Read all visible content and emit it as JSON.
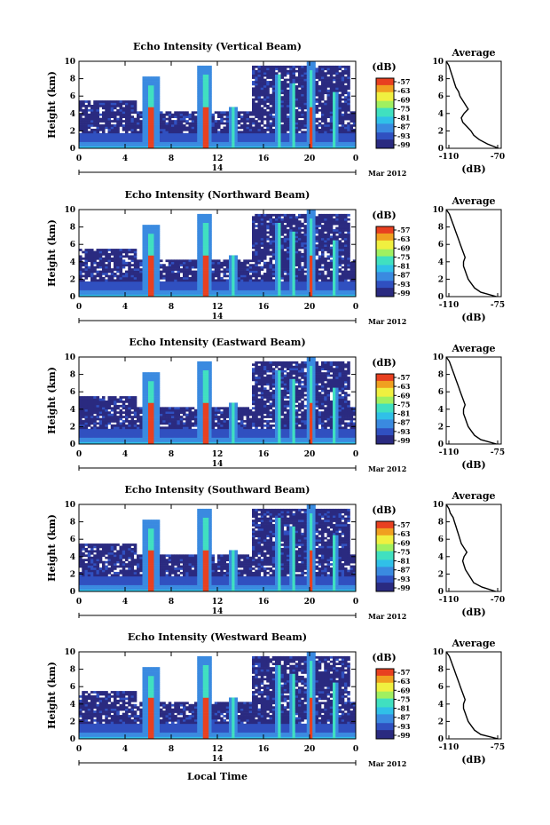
{
  "colorbar": {
    "unit": "(dB)",
    "ticks_by_panel": [
      [
        "-57",
        "-63",
        "-69",
        "-75",
        "-81",
        "-87",
        "-93",
        "-99"
      ],
      [
        "-57",
        "-63",
        "-69",
        "-75",
        "-81",
        "-87",
        "-93",
        "-99"
      ],
      [
        "-57",
        "-63",
        "-69",
        "-75",
        "-81",
        "-87",
        "-93",
        "-99"
      ],
      [
        "-57",
        "-63",
        "-69",
        "-75",
        "-81",
        "-87",
        "-93",
        "-99"
      ],
      [
        "-57",
        "-63",
        "-69",
        "-75",
        "-81",
        "-87",
        "-93",
        "-99"
      ]
    ],
    "colors": [
      "#2a2a80",
      "#3050c0",
      "#3a8ae0",
      "#30c0e8",
      "#40e0c0",
      "#a0f060",
      "#f0f040",
      "#f0a020",
      "#e84020"
    ]
  },
  "date_bar": {
    "day": "14",
    "month_year": "Mar 2012"
  },
  "x_axis_title": "Local Time",
  "chart_data": [
    {
      "type": "heatmap",
      "title": "Echo Intensity (Vertical Beam)",
      "ylabel": "Height (km)",
      "ylim": [
        0,
        10
      ],
      "yticks": [
        "0",
        "2",
        "4",
        "6",
        "8",
        "10"
      ],
      "xlim": [
        0,
        24
      ],
      "xticks": [
        "0",
        "4",
        "8",
        "12",
        "16",
        "20",
        "0"
      ],
      "colorbar_label": "(dB)",
      "color_range": [
        -99,
        -57
      ],
      "average_profile": {
        "title": "Average",
        "xlabel": "(dB)",
        "xticks": [
          "-110",
          "-70"
        ],
        "xlim": [
          -110,
          -70
        ],
        "height_km": [
          0,
          0.5,
          1,
          1.5,
          2,
          2.5,
          3,
          3.5,
          4,
          4.5,
          5,
          5.5,
          6,
          6.5,
          7,
          7.5,
          8,
          8.5,
          9,
          9.5,
          10
        ],
        "db": [
          -72,
          -80,
          -86,
          -90,
          -92,
          -95,
          -98,
          -99,
          -97,
          -94,
          -96,
          -98,
          -100,
          -101,
          -103,
          -104,
          -105,
          -106,
          -107,
          -108,
          -110
        ]
      }
    },
    {
      "type": "heatmap",
      "title": "Echo Intensity (Northward Beam)",
      "ylabel": "Height (km)",
      "ylim": [
        0,
        10
      ],
      "yticks": [
        "0",
        "2",
        "4",
        "6",
        "8",
        "10"
      ],
      "xlim": [
        0,
        24
      ],
      "xticks": [
        "0",
        "4",
        "8",
        "12",
        "16",
        "20",
        "0"
      ],
      "colorbar_label": "(dB)",
      "color_range": [
        -99,
        -57
      ],
      "average_profile": {
        "title": "Average",
        "xlabel": "(dB)",
        "xticks": [
          "-110",
          "-75"
        ],
        "xlim": [
          -110,
          -75
        ],
        "height_km": [
          0,
          0.5,
          1,
          1.5,
          2,
          2.5,
          3,
          3.5,
          4,
          4.5,
          5,
          5.5,
          6,
          6.5,
          7,
          7.5,
          8,
          8.5,
          9,
          9.5,
          10
        ],
        "db": [
          -78,
          -88,
          -92,
          -94,
          -96,
          -97,
          -98,
          -99,
          -99,
          -98,
          -99,
          -100,
          -101,
          -102,
          -103,
          -104,
          -105,
          -106,
          -107,
          -108,
          -110
        ]
      }
    },
    {
      "type": "heatmap",
      "title": "Echo Intensity (Eastward Beam)",
      "ylabel": "Height (km)",
      "ylim": [
        0,
        10
      ],
      "yticks": [
        "0",
        "2",
        "4",
        "6",
        "8",
        "10"
      ],
      "xlim": [
        0,
        24
      ],
      "xticks": [
        "0",
        "4",
        "8",
        "12",
        "16",
        "20",
        "0"
      ],
      "colorbar_label": "(dB)",
      "color_range": [
        -99,
        -57
      ],
      "average_profile": {
        "title": "Average",
        "xlabel": "(dB)",
        "xticks": [
          "-110",
          "-75"
        ],
        "xlim": [
          -110,
          -75
        ],
        "height_km": [
          0,
          0.5,
          1,
          1.5,
          2,
          2.5,
          3,
          3.5,
          4,
          4.5,
          5,
          5.5,
          6,
          6.5,
          7,
          7.5,
          8,
          8.5,
          9,
          9.5,
          10
        ],
        "db": [
          -78,
          -88,
          -92,
          -94,
          -96,
          -97,
          -98,
          -99,
          -99,
          -98,
          -99,
          -100,
          -101,
          -102,
          -103,
          -104,
          -105,
          -106,
          -107,
          -108,
          -110
        ]
      }
    },
    {
      "type": "heatmap",
      "title": "Echo Intensity (Southward Beam)",
      "ylabel": "Height (km)",
      "ylim": [
        0,
        10
      ],
      "yticks": [
        "0",
        "2",
        "4",
        "6",
        "8",
        "10"
      ],
      "xlim": [
        0,
        24
      ],
      "xticks": [
        "0",
        "4",
        "8",
        "12",
        "16",
        "20",
        "0"
      ],
      "colorbar_label": "(dB)",
      "color_range": [
        -99,
        -57
      ],
      "average_profile": {
        "title": "Average",
        "xlabel": "(dB)",
        "xticks": [
          "-110",
          "-70"
        ],
        "xlim": [
          -110,
          -70
        ],
        "height_km": [
          0,
          0.5,
          1,
          1.5,
          2,
          2.5,
          3,
          3.5,
          4,
          4.5,
          5,
          5.5,
          6,
          6.5,
          7,
          7.5,
          8,
          8.5,
          9,
          9.5,
          10
        ],
        "db": [
          -74,
          -84,
          -90,
          -92,
          -94,
          -96,
          -97,
          -98,
          -97,
          -95,
          -97,
          -99,
          -100,
          -101,
          -102,
          -103,
          -104,
          -105,
          -107,
          -108,
          -110
        ]
      }
    },
    {
      "type": "heatmap",
      "title": "Echo Intensity (Westward Beam)",
      "ylabel": "Height (km)",
      "ylim": [
        0,
        10
      ],
      "yticks": [
        "0",
        "2",
        "4",
        "6",
        "8",
        "10"
      ],
      "xlim": [
        0,
        24
      ],
      "xticks": [
        "0",
        "4",
        "8",
        "12",
        "16",
        "20",
        "0"
      ],
      "colorbar_label": "(dB)",
      "color_range": [
        -99,
        -57
      ],
      "average_profile": {
        "title": "Average",
        "xlabel": "(dB)",
        "xticks": [
          "-110",
          "-75"
        ],
        "xlim": [
          -110,
          -75
        ],
        "height_km": [
          0,
          0.5,
          1,
          1.5,
          2,
          2.5,
          3,
          3.5,
          4,
          4.5,
          5,
          5.5,
          6,
          6.5,
          7,
          7.5,
          8,
          8.5,
          9,
          9.5,
          10
        ],
        "db": [
          -77,
          -88,
          -92,
          -94,
          -96,
          -97,
          -98,
          -99,
          -99,
          -98,
          -99,
          -100,
          -101,
          -102,
          -103,
          -104,
          -105,
          -106,
          -107,
          -108,
          -110
        ]
      }
    }
  ]
}
